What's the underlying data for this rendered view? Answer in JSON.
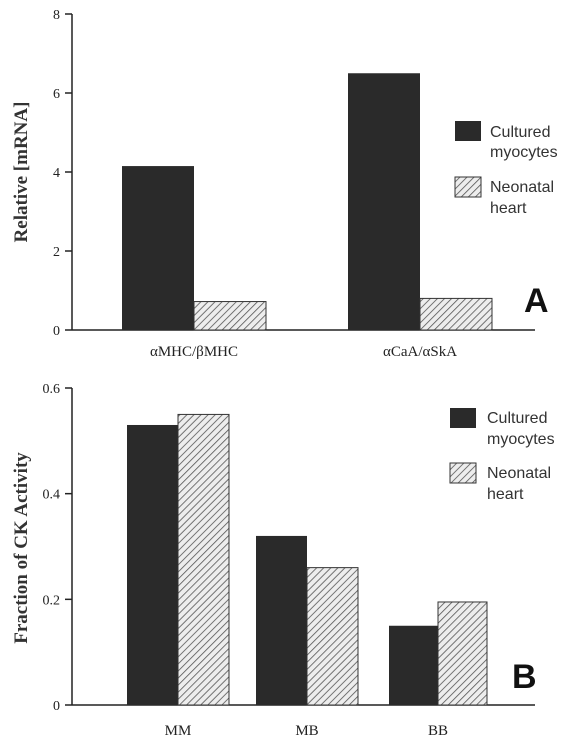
{
  "chart_data": [
    {
      "type": "bar",
      "panel_label": "A",
      "ylabel": "Relative [mRNA]",
      "xlabel": "",
      "categories": [
        "αMHC/βMHC",
        "αCaA/αSkA"
      ],
      "ylim": [
        0,
        8
      ],
      "yticks": [
        0,
        2,
        4,
        6,
        8
      ],
      "series": [
        {
          "name": "Cultured myocytes",
          "values": [
            4.15,
            6.5
          ]
        },
        {
          "name": "Neonatal heart",
          "values": [
            0.72,
            0.8
          ]
        }
      ],
      "legend": "right",
      "grid": false
    },
    {
      "type": "bar",
      "panel_label": "B",
      "ylabel": "Fraction of CK Activity",
      "xlabel": "",
      "categories": [
        "MM",
        "MB",
        "BB"
      ],
      "ylim": [
        0,
        0.6
      ],
      "yticks": [
        0,
        0.2,
        0.4,
        0.6
      ],
      "series": [
        {
          "name": "Cultured myocytes",
          "values": [
            0.53,
            0.32,
            0.15
          ]
        },
        {
          "name": "Neonatal heart",
          "values": [
            0.55,
            0.26,
            0.195
          ]
        }
      ],
      "legend": "right",
      "grid": false
    }
  ],
  "colors": {
    "cultured": "#2a2a2a",
    "neonatal_stripe": "#555555",
    "neonatal_bg": "#ededed",
    "axis": "#222222"
  }
}
